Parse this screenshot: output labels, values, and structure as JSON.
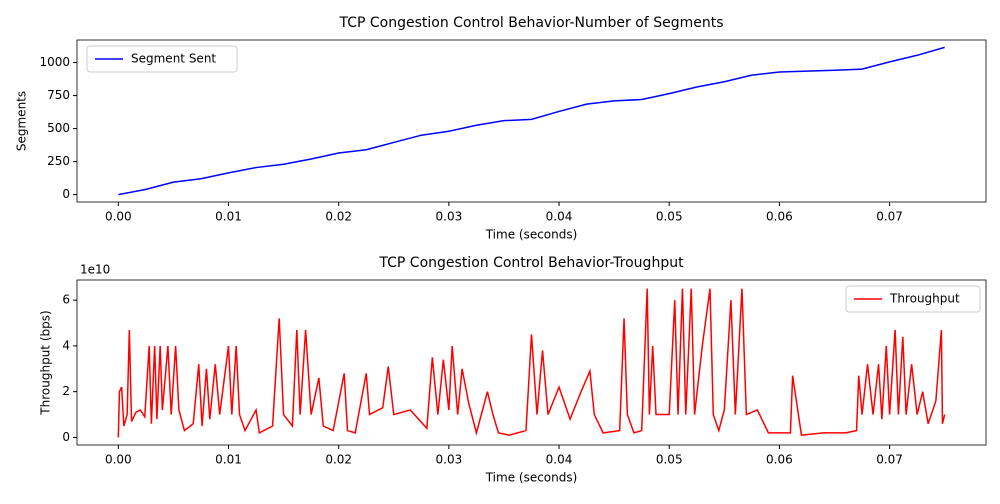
{
  "chart_data": [
    {
      "type": "line",
      "title": "TCP Congestion Control Behavior-Number of Segments",
      "xlabel": "Time (seconds)",
      "ylabel": "Segments",
      "x": [
        0,
        0.0025,
        0.005,
        0.0075,
        0.01,
        0.0125,
        0.015,
        0.0175,
        0.02,
        0.0225,
        0.025,
        0.0275,
        0.03,
        0.0325,
        0.035,
        0.0375,
        0.04,
        0.0425,
        0.045,
        0.0475,
        0.05,
        0.0525,
        0.055,
        0.0575,
        0.06,
        0.0625,
        0.065,
        0.0675,
        0.07,
        0.0725,
        0.075
      ],
      "series": [
        {
          "name": "Segment Sent",
          "color": "#0000ff",
          "values": [
            0,
            40,
            95,
            120,
            165,
            205,
            230,
            270,
            315,
            340,
            395,
            450,
            480,
            525,
            560,
            570,
            630,
            685,
            710,
            720,
            765,
            815,
            855,
            905,
            928,
            935,
            942,
            950,
            1005,
            1055,
            1115
          ]
        }
      ],
      "xlim": [
        -0.00375,
        0.07875
      ],
      "ylim": [
        -55.75,
        1170.75
      ],
      "xticks": [
        {
          "value": 0,
          "label": "0.00"
        },
        {
          "value": 0.01,
          "label": "0.01"
        },
        {
          "value": 0.02,
          "label": "0.02"
        },
        {
          "value": 0.03,
          "label": "0.03"
        },
        {
          "value": 0.04,
          "label": "0.04"
        },
        {
          "value": 0.05,
          "label": "0.05"
        },
        {
          "value": 0.06,
          "label": "0.06"
        },
        {
          "value": 0.07,
          "label": "0.07"
        }
      ],
      "yticks": [
        0,
        250,
        500,
        750,
        1000
      ],
      "legend": "upper left"
    },
    {
      "type": "line",
      "title": "TCP Congestion Control Behavior-Troughput",
      "xlabel": "Time (seconds)",
      "ylabel": "Throughput (bps)",
      "offset_label": "1e10",
      "x": [
        0,
        0.0001,
        0.0003,
        0.0005,
        0.0008,
        0.001,
        0.0012,
        0.0016,
        0.002,
        0.0024,
        0.0028,
        0.003,
        0.0033,
        0.0035,
        0.0038,
        0.004,
        0.0045,
        0.0048,
        0.0052,
        0.0055,
        0.006,
        0.0068,
        0.0073,
        0.0076,
        0.008,
        0.0083,
        0.0088,
        0.0092,
        0.01,
        0.0103,
        0.0107,
        0.011,
        0.0115,
        0.0125,
        0.0128,
        0.014,
        0.0146,
        0.015,
        0.0158,
        0.0162,
        0.0165,
        0.017,
        0.0175,
        0.0182,
        0.0186,
        0.0195,
        0.0205,
        0.0208,
        0.0215,
        0.0225,
        0.0228,
        0.024,
        0.0245,
        0.025,
        0.0265,
        0.028,
        0.0285,
        0.029,
        0.0295,
        0.03,
        0.0303,
        0.0308,
        0.0312,
        0.0318,
        0.0325,
        0.0335,
        0.034,
        0.0345,
        0.0355,
        0.037,
        0.0375,
        0.038,
        0.0385,
        0.039,
        0.04,
        0.041,
        0.042,
        0.0428,
        0.0432,
        0.044,
        0.0455,
        0.0459,
        0.0462,
        0.0468,
        0.0475,
        0.048,
        0.0482,
        0.0485,
        0.0488,
        0.05,
        0.0505,
        0.0508,
        0.0512,
        0.0515,
        0.052,
        0.0523,
        0.053,
        0.0537,
        0.054,
        0.0545,
        0.055,
        0.0556,
        0.056,
        0.0566,
        0.057,
        0.058,
        0.059,
        0.061,
        0.0612,
        0.062,
        0.064,
        0.066,
        0.067,
        0.0672,
        0.0675,
        0.068,
        0.0685,
        0.069,
        0.0693,
        0.0697,
        0.07,
        0.0705,
        0.0708,
        0.0712,
        0.0715,
        0.072,
        0.0725,
        0.073,
        0.0735,
        0.0742,
        0.0747,
        0.0748,
        0.075
      ],
      "series": [
        {
          "name": "Throughput",
          "color": "#ff0000",
          "values": [
            0,
            2.0,
            2.2,
            0.5,
            1.0,
            4.7,
            0.7,
            1.1,
            1.2,
            0.9,
            4.0,
            0.6,
            4.0,
            0.8,
            4.0,
            1.2,
            4.0,
            1.0,
            4.0,
            1.2,
            0.3,
            0.6,
            3.2,
            0.5,
            3.0,
            0.8,
            3.2,
            1.0,
            4.0,
            1.0,
            4.0,
            1.0,
            0.3,
            1.2,
            0.2,
            0.5,
            5.2,
            1.0,
            0.5,
            4.7,
            1.0,
            4.7,
            1.0,
            2.6,
            0.5,
            0.3,
            2.8,
            0.3,
            0.2,
            2.8,
            1.0,
            1.3,
            3.1,
            1.0,
            1.2,
            0.4,
            3.5,
            1.0,
            3.4,
            1.2,
            4.0,
            1.0,
            3.0,
            1.5,
            0.2,
            2.0,
            1.0,
            0.2,
            0.1,
            0.3,
            4.5,
            1.0,
            3.8,
            1.0,
            2.2,
            0.8,
            2.0,
            2.9,
            1.0,
            0.2,
            0.3,
            5.2,
            1.0,
            0.2,
            0.3,
            6.5,
            1.0,
            4.0,
            1.0,
            1.0,
            6.0,
            1.0,
            6.5,
            1.0,
            6.5,
            1.0,
            4.0,
            6.5,
            1.0,
            0.3,
            1.2,
            6.0,
            1.0,
            6.5,
            1.0,
            1.2,
            0.2,
            0.2,
            2.7,
            0.1,
            0.2,
            0.2,
            0.3,
            2.7,
            1.0,
            3.2,
            1.0,
            3.2,
            0.8,
            4.0,
            1.0,
            4.7,
            1.0,
            4.4,
            1.0,
            3.2,
            1.0,
            2.0,
            0.6,
            1.6,
            4.7,
            0.6,
            1.0
          ]
        }
      ],
      "xlim": [
        -0.00375,
        0.07875
      ],
      "ylim": [
        -0.33,
        6.88
      ],
      "xticks": [
        {
          "value": 0,
          "label": "0.00"
        },
        {
          "value": 0.01,
          "label": "0.01"
        },
        {
          "value": 0.02,
          "label": "0.02"
        },
        {
          "value": 0.03,
          "label": "0.03"
        },
        {
          "value": 0.04,
          "label": "0.04"
        },
        {
          "value": 0.05,
          "label": "0.05"
        },
        {
          "value": 0.06,
          "label": "0.06"
        },
        {
          "value": 0.07,
          "label": "0.07"
        }
      ],
      "yticks": [
        0,
        2,
        4,
        6
      ],
      "legend": "upper right"
    }
  ]
}
